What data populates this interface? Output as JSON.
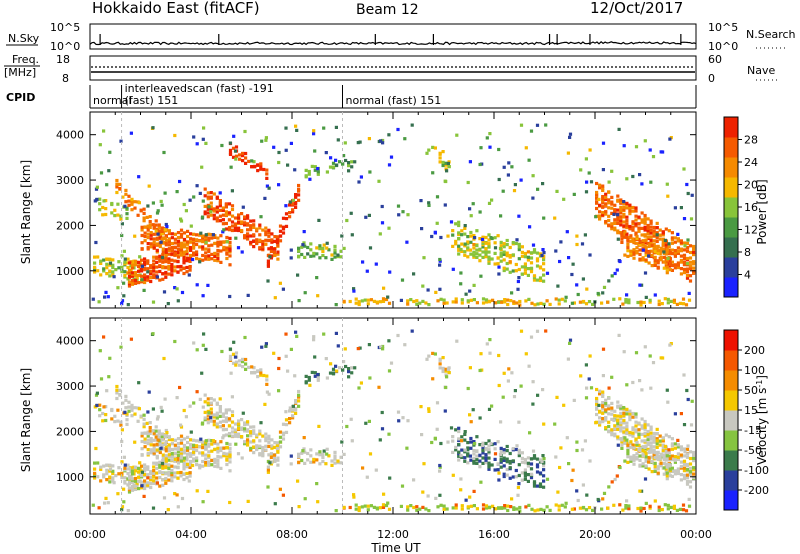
{
  "header": {
    "station": "Hokkaido East (fitACF)",
    "beam": "Beam 12",
    "date": "12/Oct/2017"
  },
  "top_panels": {
    "nsky_label": "N.Sky",
    "nsearch_label": "N.Search",
    "nsky_ticks": [
      "10^5",
      "10^0"
    ],
    "nsearch_ticks": [
      "10^5",
      "10^0"
    ],
    "freq_label": [
      "Freq.",
      "[MHz]"
    ],
    "freq_ticks": [
      "18",
      "8"
    ],
    "nave_label": "Nave",
    "nave_ticks": [
      "60",
      "0"
    ],
    "cpid_label": "CPID",
    "cpid_segments": [
      {
        "label_lines": [
          "normal"
        ],
        "start_hour": 0,
        "end_hour": 1.25
      },
      {
        "label_lines": [
          "interleavedscan (fast) -191",
          "(fast) 151"
        ],
        "start_hour": 1.25,
        "end_hour": 10.0
      },
      {
        "label_lines": [
          "normal (fast) 151"
        ],
        "start_hour": 10.0,
        "end_hour": 24.0
      }
    ]
  },
  "colors": {
    "power": [
      "#1a22ff",
      "#2a3f9c",
      "#356f4f",
      "#4a9a42",
      "#88c43a",
      "#f5b800",
      "#f58a00",
      "#f55a00",
      "#ee2200"
    ],
    "velocity": [
      "#1a22ff",
      "#2a3f9c",
      "#3b7b4b",
      "#86c440",
      "#c8c8c0",
      "#f5c800",
      "#f58c00",
      "#f55800",
      "#ee1100"
    ]
  },
  "chart_data": [
    {
      "type": "heatmap",
      "name": "power",
      "xlabel": "",
      "ylabel": "Slant Range [km]",
      "x_ticks": [
        "00:00",
        "04:00",
        "08:00",
        "12:00",
        "16:00",
        "20:00",
        "00:00"
      ],
      "x_range_hours": [
        0,
        24
      ],
      "y_ticks": [
        1000,
        2000,
        3000,
        4000
      ],
      "ylim": [
        180,
        4500
      ],
      "colorbar_label": "Power [dB]",
      "colorbar_ticks": [
        "28",
        "24",
        "20",
        "16",
        "12",
        "8",
        "4"
      ],
      "grid": false
    },
    {
      "type": "heatmap",
      "name": "velocity",
      "xlabel": "Time UT",
      "ylabel": "Slant Range [km]",
      "x_ticks": [
        "00:00",
        "04:00",
        "08:00",
        "12:00",
        "16:00",
        "20:00",
        "00:00"
      ],
      "x_range_hours": [
        0,
        24
      ],
      "y_ticks": [
        1000,
        2000,
        3000,
        4000
      ],
      "ylim": [
        180,
        4500
      ],
      "colorbar_label": "Velocity [m s",
      "colorbar_label_sup": "-1",
      "colorbar_label_end": "]",
      "colorbar_ticks": [
        "200",
        "100",
        "50",
        "15",
        "-15",
        "-50",
        "-100",
        "-200"
      ],
      "grid": false
    }
  ]
}
